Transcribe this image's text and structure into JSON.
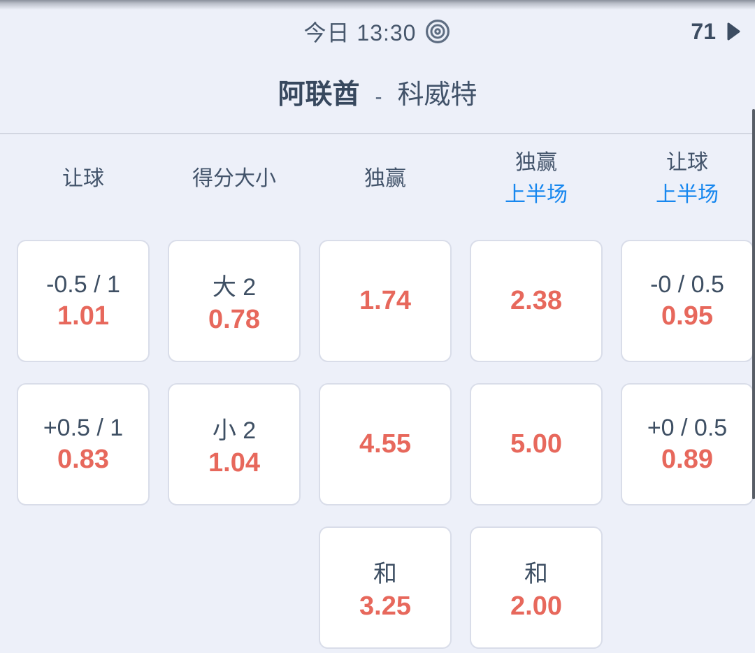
{
  "header": {
    "kickoff_label": "今日 13:30",
    "kickoff_icon": "target-icon",
    "market_count": "71",
    "more_icon": "chevron-right-icon"
  },
  "match": {
    "home_team": "阿联酋",
    "separator": "-",
    "away_team": "科威特"
  },
  "odds_table": {
    "columns": [
      {
        "label": "让球",
        "sublabel": ""
      },
      {
        "label": "得分大小",
        "sublabel": ""
      },
      {
        "label": "独赢",
        "sublabel": ""
      },
      {
        "label": "独赢",
        "sublabel": "上半场"
      },
      {
        "label": "让球",
        "sublabel": "上半场"
      }
    ],
    "rows": [
      [
        {
          "line": "-0.5 / 1",
          "odds": "1.01"
        },
        {
          "line": "大 2",
          "odds": "0.78"
        },
        {
          "line": "",
          "odds": "1.74"
        },
        {
          "line": "",
          "odds": "2.38"
        },
        {
          "line": "-0 / 0.5",
          "odds": "0.95"
        }
      ],
      [
        {
          "line": "+0.5 / 1",
          "odds": "0.83"
        },
        {
          "line": "小 2",
          "odds": "1.04"
        },
        {
          "line": "",
          "odds": "4.55"
        },
        {
          "line": "",
          "odds": "5.00"
        },
        {
          "line": "+0 / 0.5",
          "odds": "0.89"
        }
      ],
      [
        null,
        null,
        {
          "line": "和",
          "odds": "3.25"
        },
        {
          "line": "和",
          "odds": "2.00"
        },
        null
      ]
    ]
  },
  "theme": {
    "background": "#edf0f9",
    "cell_background": "#ffffff",
    "cell_border": "#d9dde9",
    "text_primary": "#3e4f63",
    "odds_color": "#e7685c",
    "half_label_color": "#1787ef"
  }
}
